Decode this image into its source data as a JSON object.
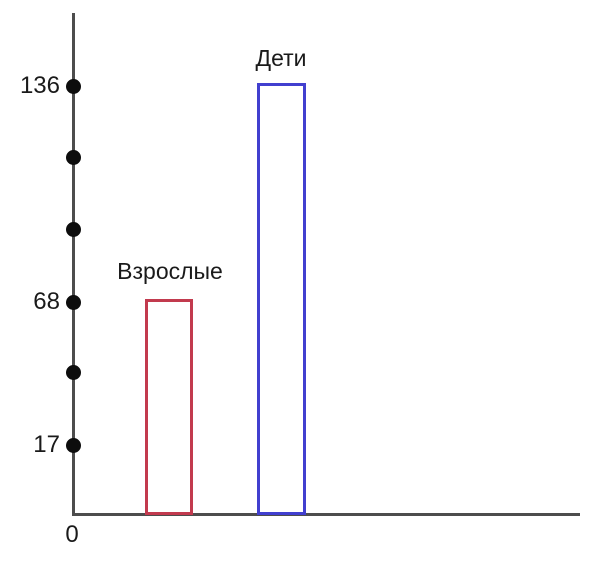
{
  "chart_data": {
    "type": "bar",
    "categories": [
      "Взрослые",
      "Дети"
    ],
    "values": [
      68,
      136
    ],
    "title": "",
    "xlabel": "",
    "ylabel": "",
    "ylim": [
      0,
      150
    ],
    "y_axis_labeled_ticks": [
      136,
      68,
      17
    ],
    "origin_label": "0",
    "axis_dot_count": 6,
    "bar_style": "outline-only",
    "bar_colors": [
      "#c23a4e",
      "#413fcf"
    ],
    "grid": false,
    "legend_position": "none",
    "annotations": [
      "Labels placed above each bar"
    ]
  },
  "axis": {
    "tick_top": "136",
    "tick_middle": "68",
    "tick_bottom": "17",
    "origin": "0"
  },
  "bars": {
    "adults": {
      "label": "Взрослые",
      "value": 68,
      "color": "#c23a4e"
    },
    "children": {
      "label": "Дети",
      "value": 136,
      "color": "#413fcf"
    }
  },
  "colors": {
    "axis": "#4d4d4d",
    "dot": "#0d0d0d",
    "adults_bar": "#c23a4e",
    "children_bar": "#413fcf",
    "text": "#1a1a1a",
    "background": "#ffffff"
  }
}
